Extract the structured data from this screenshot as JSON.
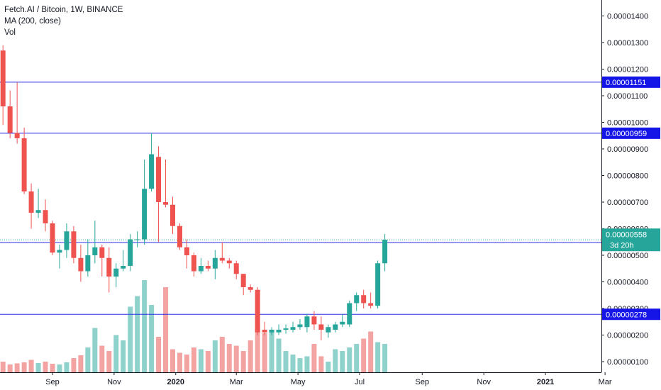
{
  "legend": {
    "symbol_line": "Fetch.AI / Bitcoin, 1W, BINANCE",
    "ma_line": "MA (200, close)",
    "vol_line": "Vol"
  },
  "colors": {
    "up": "#26a69a",
    "down": "#ef5350",
    "up_volume": "#8fd2cb",
    "down_volume": "#f4a3a3",
    "hline": "#2a2ee6",
    "tag_bg": "#1515e8",
    "last_price_bg": "#26a69a",
    "axis_line": "#131722"
  },
  "chart_data": {
    "type": "candlestick",
    "y_axis": {
      "ticks": [
        "0.00000100",
        "0.00000200",
        "0.00000300",
        "0.00000400",
        "0.00000500",
        "0.00000600",
        "0.00000700",
        "0.00000800",
        "0.00000900",
        "0.00001000",
        "0.00001100",
        "0.00001200",
        "0.00001300",
        "0.00001400"
      ],
      "range": [
        6e-07,
        1.46e-05
      ]
    },
    "x_axis": {
      "labels": [
        {
          "text": "Sep",
          "date": "2019-09-01",
          "bold": false
        },
        {
          "text": "Nov",
          "date": "2019-11-01",
          "bold": false
        },
        {
          "text": "2020",
          "date": "2020-01-01",
          "bold": true
        },
        {
          "text": "Mar",
          "date": "2020-03-01",
          "bold": false
        },
        {
          "text": "May",
          "date": "2020-05-01",
          "bold": false
        },
        {
          "text": "Jul",
          "date": "2020-07-01",
          "bold": false
        },
        {
          "text": "Sep",
          "date": "2020-09-01",
          "bold": false
        },
        {
          "text": "Nov",
          "date": "2020-11-01",
          "bold": false
        },
        {
          "text": "2021",
          "date": "2021-01-01",
          "bold": true
        },
        {
          "text": "Mar",
          "date": "2021-03-01",
          "bold": false
        }
      ]
    },
    "horizontal_levels": [
      {
        "value": 1.151e-05,
        "label": "0.00001151"
      },
      {
        "value": 9.59e-06,
        "label": "0.00000959"
      },
      {
        "value": 5.48e-06,
        "label": "0.00000548"
      },
      {
        "value": 2.78e-06,
        "label": "0.00000278"
      }
    ],
    "last_price": {
      "value": 5.58e-06,
      "label": "0.00000558",
      "countdown": "3d 20h"
    },
    "candles": [
      {
        "date": "2019-07-14",
        "open": 1.27e-05,
        "high": 1.29e-05,
        "low": 9.9e-06,
        "close": 1.06e-05,
        "volume": 0.3
      },
      {
        "date": "2019-07-21",
        "open": 1.06e-05,
        "high": 1.12e-05,
        "low": 9.4e-06,
        "close": 9.6e-06,
        "volume": 0.22
      },
      {
        "date": "2019-07-28",
        "open": 9.6e-06,
        "high": 1.15e-05,
        "low": 9.2e-06,
        "close": 9.4e-06,
        "volume": 0.25
      },
      {
        "date": "2019-08-04",
        "open": 9.4e-06,
        "high": 9.8e-06,
        "low": 7.3e-06,
        "close": 7.4e-06,
        "volume": 0.28
      },
      {
        "date": "2019-08-11",
        "open": 7.4e-06,
        "high": 7.7e-06,
        "low": 6e-06,
        "close": 6.6e-06,
        "volume": 0.35
      },
      {
        "date": "2019-08-18",
        "open": 6.6e-06,
        "high": 7.5e-06,
        "low": 6.4e-06,
        "close": 6.7e-06,
        "volume": 0.26
      },
      {
        "date": "2019-08-25",
        "open": 6.7e-06,
        "high": 7.1e-06,
        "low": 5.9e-06,
        "close": 6.2e-06,
        "volume": 0.3
      },
      {
        "date": "2019-09-01",
        "open": 6.2e-06,
        "high": 6.3e-06,
        "low": 5e-06,
        "close": 5.1e-06,
        "volume": 0.24
      },
      {
        "date": "2019-09-08",
        "open": 5.1e-06,
        "high": 5.4e-06,
        "low": 4.5e-06,
        "close": 5.2e-06,
        "volume": 0.22
      },
      {
        "date": "2019-09-15",
        "open": 5.2e-06,
        "high": 6.2e-06,
        "low": 4.9e-06,
        "close": 5.9e-06,
        "volume": 0.28
      },
      {
        "date": "2019-09-22",
        "open": 5.9e-06,
        "high": 6.1e-06,
        "low": 4.7e-06,
        "close": 4.9e-06,
        "volume": 0.4
      },
      {
        "date": "2019-09-29",
        "open": 4.9e-06,
        "high": 5.4e-06,
        "low": 4e-06,
        "close": 4.4e-06,
        "volume": 0.48
      },
      {
        "date": "2019-10-06",
        "open": 4.4e-06,
        "high": 5.6e-06,
        "low": 4.2e-06,
        "close": 5e-06,
        "volume": 0.7
      },
      {
        "date": "2019-10-13",
        "open": 5e-06,
        "high": 6.3e-06,
        "low": 4.7e-06,
        "close": 5.3e-06,
        "volume": 1.25
      },
      {
        "date": "2019-10-20",
        "open": 5.3e-06,
        "high": 5.4e-06,
        "low": 4.2e-06,
        "close": 4.9e-06,
        "volume": 0.75
      },
      {
        "date": "2019-10-27",
        "open": 4.9e-06,
        "high": 5.3e-06,
        "low": 3.6e-06,
        "close": 4.2e-06,
        "volume": 0.6
      },
      {
        "date": "2019-11-03",
        "open": 4.2e-06,
        "high": 4.7e-06,
        "low": 3.8e-06,
        "close": 4.5e-06,
        "volume": 1.05
      },
      {
        "date": "2019-11-10",
        "open": 4.5e-06,
        "high": 5.2e-06,
        "low": 4.4e-06,
        "close": 4.6e-06,
        "volume": 0.9
      },
      {
        "date": "2019-11-17",
        "open": 4.6e-06,
        "high": 5.8e-06,
        "low": 4.4e-06,
        "close": 5.6e-06,
        "volume": 1.85
      },
      {
        "date": "2019-11-24",
        "open": 5.6e-06,
        "high": 5.9e-06,
        "low": 5.3e-06,
        "close": 5.6e-06,
        "volume": 2.15
      },
      {
        "date": "2019-12-01",
        "open": 5.6e-06,
        "high": 8.6e-06,
        "low": 5.4e-06,
        "close": 7.5e-06,
        "volume": 2.6
      },
      {
        "date": "2019-12-08",
        "open": 7.5e-06,
        "high": 9.6e-06,
        "low": 7.4e-06,
        "close": 8.8e-06,
        "volume": 1.9
      },
      {
        "date": "2019-12-15",
        "open": 8.7e-06,
        "high": 9.1e-06,
        "low": 5.5e-06,
        "close": 7e-06,
        "volume": 1.0
      },
      {
        "date": "2019-12-22",
        "open": 7e-06,
        "high": 8.6e-06,
        "low": 6.8e-06,
        "close": 6.9e-06,
        "volume": 2.4
      },
      {
        "date": "2019-12-29",
        "open": 6.9e-06,
        "high": 7.2e-06,
        "low": 5.8e-06,
        "close": 6.1e-06,
        "volume": 0.65
      },
      {
        "date": "2020-01-05",
        "open": 6.1e-06,
        "high": 6.2e-06,
        "low": 5.2e-06,
        "close": 5.3e-06,
        "volume": 0.55
      },
      {
        "date": "2020-01-12",
        "open": 5.3e-06,
        "high": 5.6e-06,
        "low": 4.5e-06,
        "close": 5e-06,
        "volume": 0.5
      },
      {
        "date": "2020-01-19",
        "open": 5e-06,
        "high": 5.1e-06,
        "low": 4.2e-06,
        "close": 4.4e-06,
        "volume": 0.7
      },
      {
        "date": "2020-01-26",
        "open": 4.4e-06,
        "high": 4.9e-06,
        "low": 4.3e-06,
        "close": 4.6e-06,
        "volume": 0.65
      },
      {
        "date": "2020-02-02",
        "open": 4.6e-06,
        "high": 4.8e-06,
        "low": 4.4e-06,
        "close": 4.5e-06,
        "volume": 0.6
      },
      {
        "date": "2020-02-09",
        "open": 4.5e-06,
        "high": 5.2e-06,
        "low": 4.1e-06,
        "close": 4.9e-06,
        "volume": 0.9
      },
      {
        "date": "2020-02-16",
        "open": 4.9e-06,
        "high": 5.5e-06,
        "low": 4.7e-06,
        "close": 4.8e-06,
        "volume": 1.0
      },
      {
        "date": "2020-02-23",
        "open": 4.8e-06,
        "high": 4.9e-06,
        "low": 4.5e-06,
        "close": 4.7e-06,
        "volume": 0.8
      },
      {
        "date": "2020-03-01",
        "open": 4.7e-06,
        "high": 4.8e-06,
        "low": 4.1e-06,
        "close": 4.3e-06,
        "volume": 0.75
      },
      {
        "date": "2020-03-08",
        "open": 4.3e-06,
        "high": 4.3e-06,
        "low": 3.5e-06,
        "close": 3.8e-06,
        "volume": 0.6
      },
      {
        "date": "2020-03-15",
        "open": 3.8e-06,
        "high": 3.9e-06,
        "low": 3.6e-06,
        "close": 3.7e-06,
        "volume": 0.9
      },
      {
        "date": "2020-03-22",
        "open": 3.7e-06,
        "high": 3.8e-06,
        "low": 2e-06,
        "close": 2.1e-06,
        "volume": 1.25
      },
      {
        "date": "2020-03-29",
        "open": 2.2e-06,
        "high": 2.5e-06,
        "low": 2e-06,
        "close": 2.1e-06,
        "volume": 1.1
      },
      {
        "date": "2020-04-05",
        "open": 2.1e-06,
        "high": 2.3e-06,
        "low": 2e-06,
        "close": 2.2e-06,
        "volume": 1.2
      },
      {
        "date": "2020-04-12",
        "open": 2.1e-06,
        "high": 2.4e-06,
        "low": 2e-06,
        "close": 2.2e-06,
        "volume": 0.95
      },
      {
        "date": "2020-04-19",
        "open": 2.2e-06,
        "high": 2.4e-06,
        "low": 2.05e-06,
        "close": 2.25e-06,
        "volume": 0.6
      },
      {
        "date": "2020-04-26",
        "open": 2.2e-06,
        "high": 2.5e-06,
        "low": 2.1e-06,
        "close": 2.3e-06,
        "volume": 0.5
      },
      {
        "date": "2020-05-03",
        "open": 2.3e-06,
        "high": 2.6e-06,
        "low": 2.2e-06,
        "close": 2.4e-06,
        "volume": 0.4
      },
      {
        "date": "2020-05-10",
        "open": 2.3e-06,
        "high": 2.8e-06,
        "low": 2.1e-06,
        "close": 2.7e-06,
        "volume": 0.45
      },
      {
        "date": "2020-05-17",
        "open": 2.7e-06,
        "high": 2.9e-06,
        "low": 2.2e-06,
        "close": 2.4e-06,
        "volume": 0.8
      },
      {
        "date": "2020-05-24",
        "open": 2.4e-06,
        "high": 2.7e-06,
        "low": 1.8e-06,
        "close": 2.2e-06,
        "volume": 0.45
      },
      {
        "date": "2020-05-31",
        "open": 2.1e-06,
        "high": 2.4e-06,
        "low": 1.9e-06,
        "close": 2.3e-06,
        "volume": 0.3
      },
      {
        "date": "2020-06-07",
        "open": 2.2e-06,
        "high": 2.5e-06,
        "low": 2.1e-06,
        "close": 2.4e-06,
        "volume": 0.65
      },
      {
        "date": "2020-06-14",
        "open": 2.4e-06,
        "high": 2.8e-06,
        "low": 2.3e-06,
        "close": 2.5e-06,
        "volume": 0.6
      },
      {
        "date": "2020-06-21",
        "open": 2.4e-06,
        "high": 3.3e-06,
        "low": 2.3e-06,
        "close": 3.2e-06,
        "volume": 0.7
      },
      {
        "date": "2020-06-28",
        "open": 3.2e-06,
        "high": 3.6e-06,
        "low": 2.9e-06,
        "close": 3.5e-06,
        "volume": 0.8
      },
      {
        "date": "2020-07-05",
        "open": 3.5e-06,
        "high": 3.7e-06,
        "low": 3e-06,
        "close": 3.2e-06,
        "volume": 0.95
      },
      {
        "date": "2020-07-12",
        "open": 3.2e-06,
        "high": 3.6e-06,
        "low": 3e-06,
        "close": 3.1e-06,
        "volume": 1.15
      },
      {
        "date": "2020-07-19",
        "open": 3.1e-06,
        "high": 4.8e-06,
        "low": 3e-06,
        "close": 4.7e-06,
        "volume": 0.85
      },
      {
        "date": "2020-07-26",
        "open": 4.7e-06,
        "high": 5.8e-06,
        "low": 4.4e-06,
        "close": 5.58e-06,
        "volume": 0.8
      }
    ]
  }
}
